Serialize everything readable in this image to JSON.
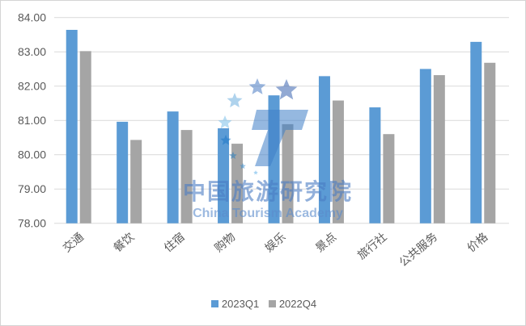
{
  "chart_data": {
    "type": "bar",
    "categories": [
      "交通",
      "餐饮",
      "住宿",
      "购物",
      "娱乐",
      "景点",
      "旅行社",
      "公共服务",
      "价格"
    ],
    "series": [
      {
        "name": "2023Q1",
        "color": "#5b9bd5",
        "values": [
          83.64,
          80.96,
          81.26,
          80.77,
          81.73,
          82.29,
          81.38,
          82.5,
          83.29
        ]
      },
      {
        "name": "2022Q4",
        "color": "#a5a5a5",
        "values": [
          83.02,
          80.43,
          80.72,
          80.32,
          80.89,
          81.58,
          80.6,
          82.32,
          82.68
        ]
      }
    ],
    "ylim": [
      78,
      84
    ],
    "yticks": [
      "78.00",
      "79.00",
      "80.00",
      "81.00",
      "82.00",
      "83.00",
      "84.00"
    ],
    "grid": true,
    "legend_position": "bottom"
  },
  "watermark": {
    "cn": "中国旅游研究院",
    "en": "China Tourism Academy"
  }
}
